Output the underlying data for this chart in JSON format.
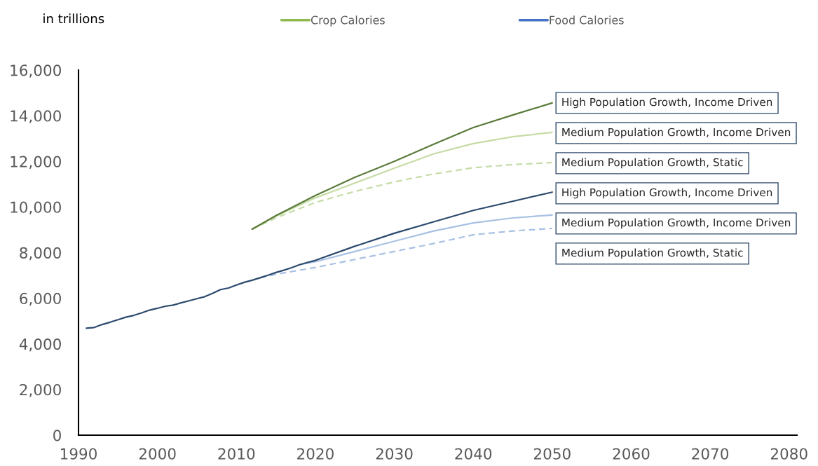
{
  "chart_data": {
    "type": "line",
    "ylabel": "in trillions",
    "legend": "top",
    "marker": "none",
    "xlim": [
      1990,
      2081
    ],
    "xticks": [
      1990,
      2000,
      2010,
      2020,
      2030,
      2040,
      2050,
      2060,
      2070,
      2080
    ],
    "ylim": [
      0,
      16000
    ],
    "yticks": [
      0,
      {
        "value": 2000,
        "label": "2,000"
      },
      {
        "value": 4000,
        "label": "4,000"
      },
      {
        "value": 6000,
        "label": "6,000"
      },
      {
        "value": 8000,
        "label": "8,000"
      },
      {
        "value": 10000,
        "label": "10,000"
      },
      {
        "value": 12000,
        "label": "12,000"
      },
      {
        "value": 14000,
        "label": "14,000"
      },
      {
        "value": 16000,
        "label": "16,000"
      }
    ],
    "series": [
      {
        "name": "Crop Calories",
        "color": "#8db94f"
      },
      {
        "name": "Food Calories",
        "color": "#4472c4"
      },
      {
        "name": "High Population Growth, Income Driven",
        "color": "#5b7b3a",
        "line_style": "solid",
        "x": [
          2012,
          2015,
          2020,
          2025,
          2030,
          2035,
          2040,
          2045,
          2050
        ],
        "values": [
          9030,
          9620,
          10500,
          11300,
          12000,
          12750,
          13480,
          14030,
          14560
        ]
      },
      {
        "name": "Medium Population Growth, Income Driven",
        "color": "#c6dca6",
        "line_style": "solid",
        "x": [
          2012,
          2015,
          2020,
          2025,
          2030,
          2035,
          2040,
          2045,
          2050
        ],
        "values": [
          9030,
          9600,
          10400,
          11050,
          11700,
          12330,
          12780,
          13080,
          13270
        ]
      },
      {
        "name": "Medium Population Growth, Static",
        "color": "#c6dca6",
        "line_style": "dashed",
        "x": [
          2012,
          2015,
          2020,
          2025,
          2030,
          2035,
          2040,
          2045,
          2050
        ],
        "values": [
          9030,
          9520,
          10200,
          10680,
          11100,
          11450,
          11720,
          11860,
          11950
        ]
      },
      {
        "name": "High Population Growth, Income Driven",
        "color": "#2c4a6e",
        "line_style": "solid",
        "x": [
          1991,
          1992,
          1993,
          1994,
          1995,
          1996,
          1997,
          1998,
          1999,
          2000,
          2001,
          2002,
          2003,
          2004,
          2005,
          2006,
          2007,
          2008,
          2009,
          2010,
          2011,
          2012,
          2013,
          2014,
          2015,
          2016,
          2017,
          2018,
          2019,
          2020,
          2025,
          2030,
          2035,
          2040,
          2045,
          2050
        ],
        "values": [
          4690,
          4720,
          4850,
          4950,
          5060,
          5170,
          5250,
          5360,
          5480,
          5560,
          5650,
          5700,
          5800,
          5890,
          5980,
          6070,
          6220,
          6380,
          6450,
          6580,
          6700,
          6790,
          6900,
          7010,
          7130,
          7230,
          7340,
          7470,
          7570,
          7660,
          8280,
          8850,
          9350,
          9850,
          10250,
          10650
        ]
      },
      {
        "name": "Medium Population Growth, Income Driven",
        "color": "#a8c1e4",
        "line_style": "solid",
        "x": [
          2018,
          2020,
          2025,
          2030,
          2035,
          2040,
          2045,
          2050
        ],
        "values": [
          7470,
          7600,
          8050,
          8500,
          8950,
          9300,
          9520,
          9650
        ]
      },
      {
        "name": "Medium Population Growth, Static",
        "color": "#a8c1e4",
        "line_style": "dashed",
        "x": [
          2013,
          2015,
          2020,
          2025,
          2030,
          2035,
          2040,
          2045,
          2050
        ],
        "values": [
          6900,
          7050,
          7350,
          7700,
          8050,
          8400,
          8780,
          8950,
          9060
        ]
      }
    ]
  }
}
